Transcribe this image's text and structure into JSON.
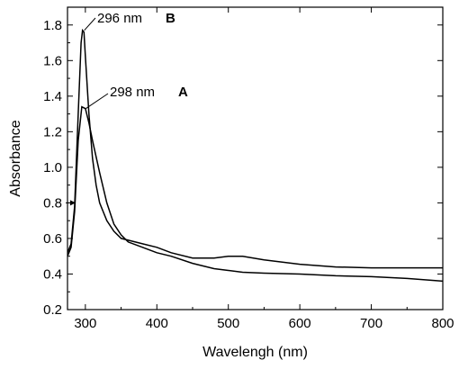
{
  "chart_data": {
    "type": "line",
    "xlabel": "Wavelengh (nm)",
    "ylabel": "Absorbance",
    "xlim": [
      275,
      800
    ],
    "ylim": [
      0.2,
      1.9
    ],
    "xticks": [
      300,
      400,
      500,
      600,
      700,
      800
    ],
    "yticks": [
      0.2,
      0.4,
      0.6,
      0.8,
      1.0,
      1.2,
      1.4,
      1.6,
      1.8
    ],
    "xtick_labels": [
      "300",
      "400",
      "500",
      "600",
      "700",
      "800"
    ],
    "ytick_labels": [
      "0.2",
      "0.4",
      "0.6",
      "0.8",
      "1.0",
      "1.2",
      "1.4",
      "1.6",
      "1.8"
    ],
    "grid": false,
    "series": [
      {
        "name": "A",
        "x": [
          275,
          280,
          285,
          290,
          295,
          300,
          305,
          310,
          320,
          330,
          340,
          350,
          360,
          380,
          400,
          420,
          450,
          480,
          500,
          520,
          550,
          600,
          650,
          700,
          750,
          800
        ],
        "y": [
          0.5,
          0.55,
          0.75,
          1.15,
          1.34,
          1.33,
          1.25,
          1.15,
          0.97,
          0.8,
          0.68,
          0.62,
          0.58,
          0.55,
          0.52,
          0.5,
          0.46,
          0.43,
          0.42,
          0.41,
          0.405,
          0.4,
          0.39,
          0.385,
          0.375,
          0.36
        ]
      },
      {
        "name": "B",
        "x": [
          275,
          280,
          285,
          290,
          294,
          296,
          298,
          300,
          305,
          310,
          315,
          320,
          330,
          340,
          350,
          360,
          380,
          400,
          420,
          450,
          480,
          500,
          520,
          550,
          600,
          650,
          700,
          750,
          800
        ],
        "y": [
          0.52,
          0.57,
          0.78,
          1.3,
          1.7,
          1.77,
          1.76,
          1.62,
          1.3,
          1.05,
          0.9,
          0.8,
          0.7,
          0.64,
          0.6,
          0.59,
          0.57,
          0.55,
          0.52,
          0.49,
          0.49,
          0.5,
          0.5,
          0.48,
          0.455,
          0.44,
          0.435,
          0.435,
          0.435
        ]
      }
    ],
    "annotations": [
      {
        "text": "296 nm",
        "letter": "B",
        "x": 296,
        "y": 1.77
      },
      {
        "text": "298 nm",
        "letter": "A",
        "x": 298,
        "y": 1.34
      }
    ]
  }
}
